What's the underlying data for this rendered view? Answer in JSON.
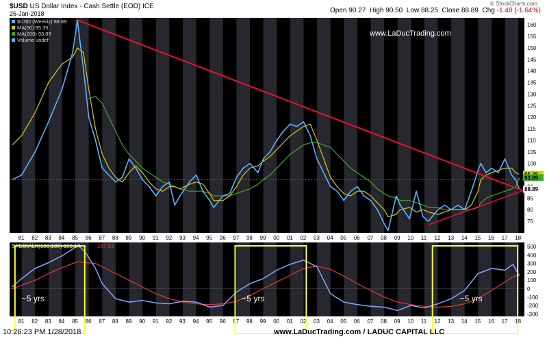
{
  "header": {
    "symbol": "$USD",
    "name": "US Dollar Index - Cash Settle (EOD)",
    "exchange": "ICE",
    "date": "26-Jan-2018",
    "open_label": "Open",
    "open": "90.27",
    "high_label": "High",
    "high": "90.50",
    "low_label": "Low",
    "low": "88.25",
    "close_label": "Close",
    "close": "88.89",
    "chg_label": "Chg",
    "chg": "-1.48 (-1.64%)",
    "brand": "© StockCharts.com"
  },
  "legend": {
    "price": "$USD (Weekly) 88.89",
    "ma50": "MA(50) 95.35",
    "ma200": "MA(200) 93.89",
    "volume": "Volume undef"
  },
  "watermark": "www.LaDucTrading.com",
  "footer": {
    "timestamp": "10:26:23 PM 1/28/2018",
    "credit": "www.LaDucTrading.com / LADUC CAPITAL LLC"
  },
  "colors": {
    "background": "#000000",
    "price": "#5ab4ff",
    "ma50": "#d7d000",
    "ma200": "#3faa2a",
    "trend": "#e8112d",
    "box": "#ffff33",
    "special": "#8aa4ff",
    "signal": "#e23b3b"
  },
  "chart_data": [
    {
      "type": "line",
      "title": "$USD US Dollar Index - Cash Settle (EOD) ICE",
      "x_ticks": [
        "81",
        "82",
        "83",
        "84",
        "85",
        "86",
        "87",
        "88",
        "89",
        "90",
        "91",
        "92",
        "93",
        "94",
        "95",
        "96",
        "97",
        "98",
        "99",
        "00",
        "01",
        "02",
        "03",
        "04",
        "05",
        "06",
        "07",
        "08",
        "09",
        "10",
        "11",
        "12",
        "13",
        "14",
        "15",
        "16",
        "17",
        "18"
      ],
      "y_ticks": [
        75,
        80,
        85,
        90,
        95,
        100,
        105,
        110,
        115,
        120,
        125,
        130,
        135,
        140,
        145,
        150,
        155,
        160
      ],
      "ylim": [
        70,
        163
      ],
      "x": [
        1980.3,
        1981.0,
        1982.0,
        1983.0,
        1984.0,
        1984.8,
        1985.15,
        1985.6,
        1986.0,
        1986.5,
        1987.0,
        1987.5,
        1988.0,
        1988.5,
        1989.0,
        1989.5,
        1990.0,
        1990.5,
        1991.0,
        1991.5,
        1992.0,
        1992.4,
        1992.8,
        1993.5,
        1994.0,
        1994.5,
        1995.0,
        1995.3,
        1996.0,
        1996.5,
        1997.0,
        1997.5,
        1998.0,
        1998.6,
        1999.0,
        1999.5,
        2000.0,
        2000.5,
        2001.0,
        2001.5,
        2002.0,
        2002.5,
        2003.0,
        2003.5,
        2004.0,
        2004.5,
        2005.0,
        2005.5,
        2006.0,
        2006.5,
        2007.0,
        2007.5,
        2008.0,
        2008.3,
        2008.9,
        2009.2,
        2009.9,
        2010.4,
        2010.9,
        2011.3,
        2012.0,
        2012.5,
        2013.0,
        2013.5,
        2014.0,
        2014.5,
        2015.0,
        2015.2,
        2015.6,
        2016.0,
        2016.5,
        2017.0,
        2017.5,
        2017.8,
        2018.07
      ],
      "series": [
        {
          "name": "$USD (Weekly) 88.89",
          "values": [
            93,
            95,
            105,
            118,
            132,
            148,
            162,
            141,
            120,
            110,
            98,
            95,
            92,
            94,
            102,
            98,
            93,
            90,
            86,
            90,
            92,
            82,
            86,
            92,
            95,
            88,
            84,
            81,
            86,
            87,
            94,
            98,
            100,
            96,
            102,
            105,
            110,
            114,
            117,
            116,
            118,
            112,
            102,
            96,
            90,
            88,
            84,
            88,
            90,
            86,
            84,
            80,
            74,
            71,
            86,
            82,
            76,
            88,
            77,
            75,
            80,
            82,
            80,
            82,
            80,
            88,
            97,
            100,
            96,
            98,
            96,
            102,
            95,
            93,
            88.89
          ]
        },
        {
          "name": "MA(50) 95.35",
          "values": [
            108,
            112,
            122,
            135,
            143,
            146,
            150,
            148,
            132,
            115,
            104,
            98,
            94,
            92,
            96,
            99,
            96,
            92,
            89,
            88,
            90,
            90,
            89,
            91,
            92,
            91,
            87,
            84,
            84,
            86,
            90,
            95,
            98,
            99,
            101,
            103,
            106,
            109,
            112,
            114,
            116,
            117,
            110,
            102,
            94,
            90,
            87,
            86,
            88,
            88,
            86,
            83,
            80,
            77,
            78,
            80,
            81,
            79,
            80,
            79,
            78,
            79,
            80,
            80,
            80,
            82,
            88,
            93,
            95,
            96,
            97,
            98,
            98,
            96,
            95.35
          ]
        },
        {
          "name": "MA(200) 93.89",
          "values": [
            null,
            null,
            null,
            null,
            null,
            null,
            null,
            null,
            128,
            129,
            126,
            120,
            114,
            108,
            104,
            101,
            98,
            96,
            94,
            92,
            91,
            90,
            89,
            88,
            88,
            88,
            87,
            86,
            86,
            86,
            87,
            88,
            89,
            91,
            93,
            95,
            98,
            101,
            104,
            106,
            108,
            109,
            109,
            108,
            107,
            104,
            101,
            98,
            96,
            94,
            92,
            89,
            87,
            86,
            85,
            84,
            84,
            83,
            82,
            81,
            81,
            80,
            80,
            80,
            80,
            80,
            81,
            83,
            85,
            86,
            87,
            88,
            89,
            90,
            93.89
          ]
        }
      ],
      "annotations": [
        "Downtrend line from 1985 high",
        "Rising trendline from 2011 low",
        "Horizontal dotted line near 93"
      ]
    },
    {
      "type": "line",
      "title": "SPECIALK(100,100)",
      "y_ticks": [
        -300,
        -200,
        -100,
        0,
        100,
        200,
        300,
        400,
        500
      ],
      "ylim": [
        -330,
        550
      ],
      "x": [
        1980.3,
        1981.0,
        1982.0,
        1983.0,
        1984.0,
        1984.8,
        1985.2,
        1985.8,
        1986.5,
        1987.0,
        1988.0,
        1989.0,
        1990.0,
        1991.0,
        1992.0,
        1993.0,
        1994.0,
        1995.0,
        1996.0,
        1997.0,
        1998.0,
        1999.0,
        2000.0,
        2001.0,
        2002.0,
        2003.0,
        2004.0,
        2005.0,
        2006.0,
        2007.0,
        2008.0,
        2009.0,
        2010.0,
        2011.0,
        2012.0,
        2013.0,
        2014.0,
        2015.0,
        2016.0,
        2017.0,
        2017.6,
        2018.07
      ],
      "series": [
        {
          "name": "SPECIALK(100,100) 153.14",
          "values": [
            20,
            120,
            240,
            310,
            390,
            470,
            520,
            420,
            240,
            60,
            -120,
            -160,
            -140,
            -170,
            -180,
            -150,
            -160,
            -220,
            -200,
            -40,
            60,
            120,
            220,
            290,
            340,
            260,
            -60,
            -160,
            -190,
            -210,
            -220,
            -260,
            -200,
            -230,
            -180,
            -120,
            -20,
            180,
            240,
            220,
            290,
            153.14
          ]
        },
        {
          "name": "167.53",
          "values": [
            0,
            40,
            100,
            180,
            250,
            300,
            320,
            310,
            300,
            260,
            180,
            100,
            20,
            -60,
            -120,
            -160,
            -180,
            -190,
            -180,
            -150,
            -80,
            0,
            80,
            160,
            240,
            270,
            230,
            150,
            60,
            -20,
            -100,
            -160,
            -190,
            -210,
            -220,
            -210,
            -180,
            -120,
            -20,
            80,
            140,
            167.53
          ]
        }
      ],
      "box_labels": [
        "~5 yrs",
        "~5 yrs",
        "~5 yrs"
      ]
    }
  ]
}
